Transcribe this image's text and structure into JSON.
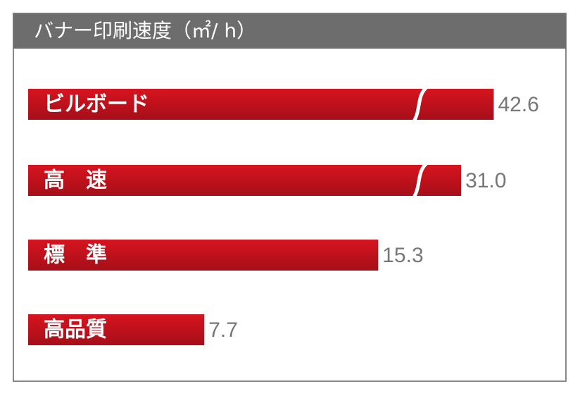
{
  "chart_data": {
    "type": "bar",
    "orientation": "horizontal",
    "title": "バナー印刷速度（㎡/ h）",
    "categories": [
      "ビルボード",
      "高　速",
      "標　準",
      "高品質"
    ],
    "values": [
      42.6,
      31.0,
      15.3,
      7.7
    ],
    "value_labels": [
      "42.6",
      "31.0",
      "15.3",
      "7.7"
    ],
    "color": "#c8101c"
  }
}
